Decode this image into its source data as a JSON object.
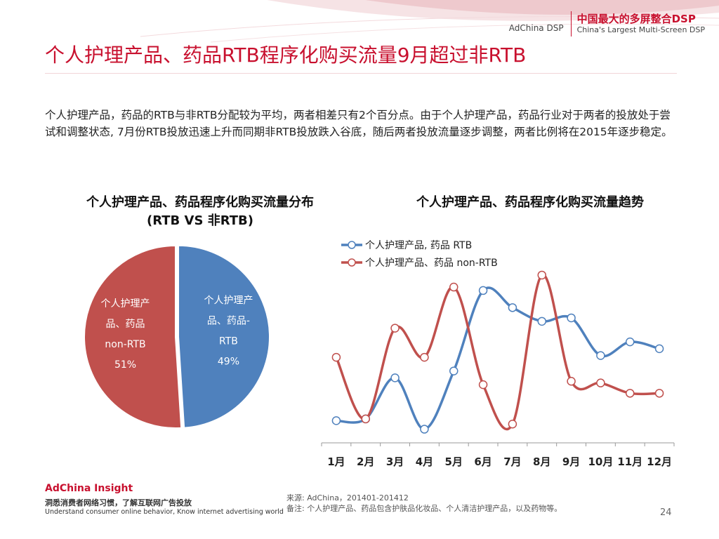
{
  "header": {
    "brand_left": "AdChina DSP",
    "brand_cn": "中国最大的多屏整合DSP",
    "brand_en": "China's Largest Multi-Screen DSP"
  },
  "title": "个人护理产品、药品RTB程序化购买流量9月超过非RTB",
  "description": "个人护理产品，药品的RTB与非RTB分配较为平均，两者相差只有2个百分点。由于个人护理产品，药品行业对于两者的投放处于尝试和调整状态, 7月份RTB投放迅速上升而同期非RTB投放跌入谷底，随后两者投放流量逐步调整，两者比例将在2015年逐步稳定。",
  "colors": {
    "accent": "#c8102e",
    "rtb": "#4f81bd",
    "non_rtb": "#c0504d"
  },
  "pie_title": "个人护理产品、药品程序化购买流量分布\n(RTB VS 非RTB)",
  "line_title": "个人护理产品、药品程序化购买流量趋势",
  "chart_data": [
    {
      "type": "pie",
      "title": "个人护理产品、药品程序化购买流量分布\n(RTB VS 非RTB)",
      "slices": [
        {
          "label": "个人护理产品、药品-RTB",
          "label_lines": [
            "个人护理产",
            "品、药品-",
            "RTB",
            "49%"
          ],
          "value": 49,
          "color": "#4f81bd"
        },
        {
          "label": "个人护理产品、药品non-RTB",
          "label_lines": [
            "个人护理产",
            "品、药品",
            "non-RTB",
            "51%"
          ],
          "value": 51,
          "color": "#c0504d"
        }
      ]
    },
    {
      "type": "line",
      "title": "个人护理产品、药品程序化购买流量趋势",
      "categories": [
        "1月",
        "2月",
        "3月",
        "4月",
        "5月",
        "6月",
        "7月",
        "8月",
        "9月",
        "10月",
        "11月",
        "12月"
      ],
      "y_axis_shown": false,
      "ylim": [
        0,
        100
      ],
      "legend_position": "top-left",
      "series": [
        {
          "name": "个人护理产品, 药品 RTB",
          "color": "#4f81bd",
          "values": [
            6,
            7,
            31,
            1,
            35,
            82,
            72,
            64,
            66,
            44,
            52,
            48
          ]
        },
        {
          "name": "个人护理产品、药品 non-RTB",
          "color": "#c0504d",
          "values": [
            43,
            7,
            60,
            43,
            84,
            27,
            4,
            91,
            29,
            28,
            22,
            22
          ]
        }
      ]
    }
  ],
  "footer": {
    "brand": "AdChina Insight",
    "slogan_cn": "洞悉消费者网络习惯，了解互联网广告投放",
    "slogan_en": "Understand consumer online behavior, Know internet advertising world",
    "source": "来源: AdChina，201401-201412",
    "note": "备注: 个人护理产品、药品包含护肤品化妆品、个人清洁护理产品，以及药物等。",
    "page": "24"
  }
}
